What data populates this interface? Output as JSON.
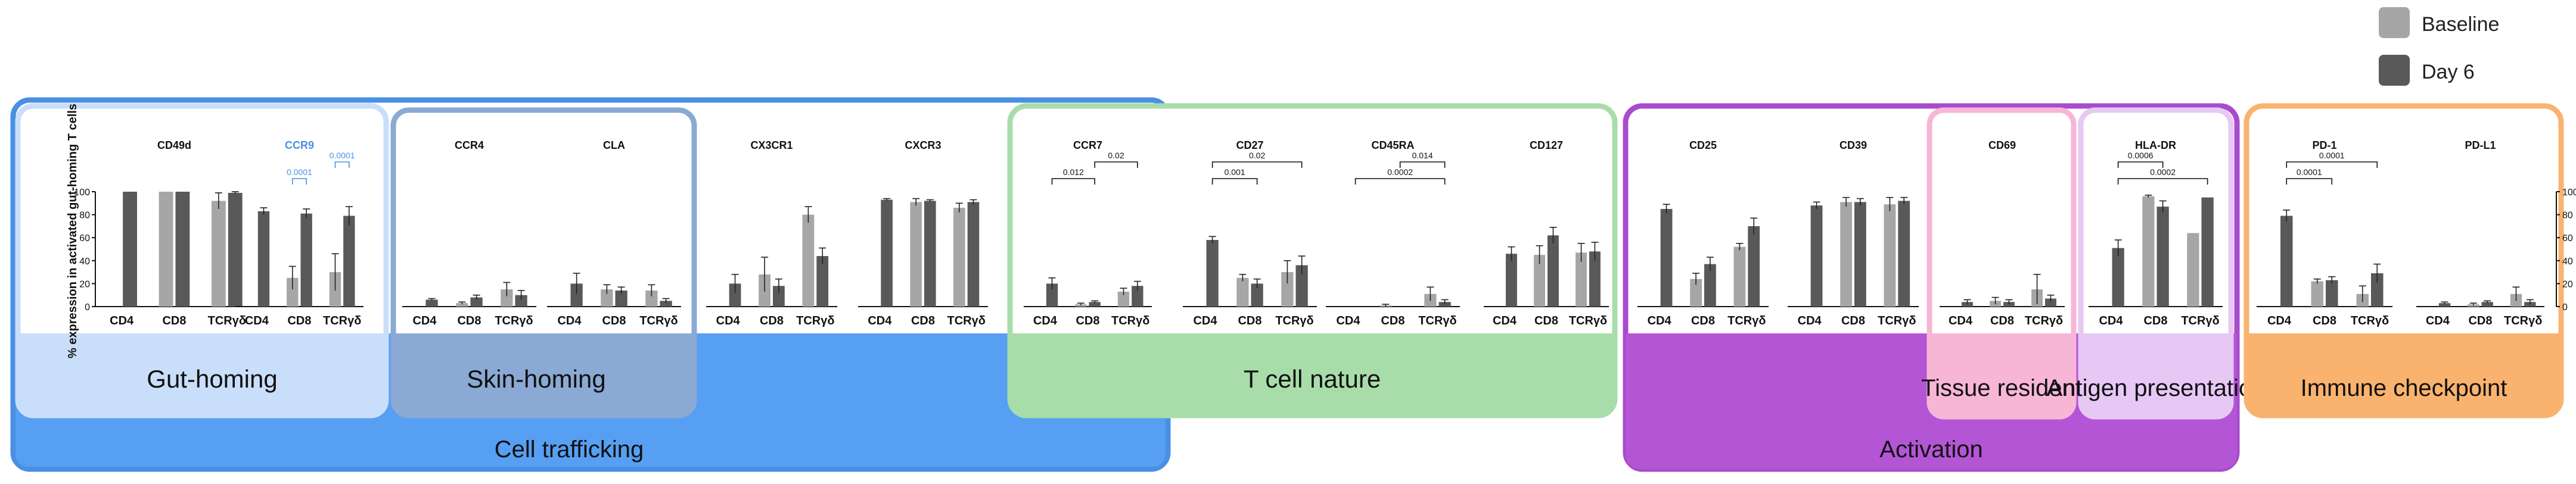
{
  "legend": {
    "items": [
      {
        "label": "Baseline",
        "color": "#a6a6a6"
      },
      {
        "label": "Day 6",
        "color": "#595959"
      }
    ]
  },
  "y_axis_label": "% expression in activated gut-homing T cells",
  "right_axis_ticks": [
    "0",
    "20",
    "40",
    "60",
    "80",
    "100"
  ],
  "groups": {
    "cell_trafficking": "Cell trafficking",
    "gut_homing": "Gut-homing",
    "skin_homing": "Skin-homing",
    "t_cell_nature": "T cell nature",
    "activation": "Activation",
    "tissue_resident": "Tissue resident",
    "antigen_presentation": "Antigen presentation",
    "immune_checkpoint": "Immune checkpoint"
  },
  "colors": {
    "baseline": "#a6a6a6",
    "day6": "#595959",
    "trafficking_outer": "#4a90e2",
    "trafficking_fill": "#569ff2",
    "gut_fill": "#c9defa",
    "skin_fill": "#8aa9d5",
    "tcell": "#a8ddaa",
    "activation": "#b455d6",
    "activation_border": "#a84bcc",
    "tissue": "#f8b6d6",
    "antigen": "#e7c8f5",
    "checkpoint": "#f9b36f",
    "ccr9_title": "#4a90e2"
  },
  "chart_data": {
    "type": "bar",
    "categories": [
      "CD4",
      "CD8",
      "TCRγδ"
    ],
    "series_names": [
      "Baseline",
      "Day 6"
    ],
    "ylim": [
      0,
      100
    ],
    "panels": [
      {
        "title": "CD49d",
        "values": {
          "baseline": [
            null,
            100,
            92
          ],
          "day6": [
            100,
            100,
            99
          ]
        },
        "errors": {
          "baseline": [
            0,
            0,
            7
          ],
          "day6": [
            0,
            0,
            1
          ]
        }
      },
      {
        "title": "CCR9",
        "values": {
          "baseline": [
            null,
            25,
            30
          ],
          "day6": [
            83,
            81,
            79
          ]
        },
        "errors": {
          "baseline": [
            0,
            10,
            16
          ],
          "day6": [
            3,
            4,
            8
          ]
        },
        "annotations": [
          {
            "label": "0.0001",
            "from": "CD8 Baseline",
            "to": "CD8 Day 6"
          },
          {
            "label": "0.0001",
            "from": "TCRγδ Baseline",
            "to": "TCRγδ Day 6"
          }
        ]
      },
      {
        "title": "CCR4",
        "values": {
          "baseline": [
            null,
            3,
            15
          ],
          "day6": [
            6,
            8,
            10
          ]
        },
        "errors": {
          "baseline": [
            0,
            1,
            6
          ],
          "day6": [
            1,
            2,
            4
          ]
        }
      },
      {
        "title": "CLA",
        "values": {
          "baseline": [
            null,
            15,
            14
          ],
          "day6": [
            20,
            14,
            5
          ]
        },
        "errors": {
          "baseline": [
            0,
            4,
            5
          ],
          "day6": [
            9,
            3,
            2
          ]
        }
      },
      {
        "title": "CX3CR1",
        "values": {
          "baseline": [
            null,
            28,
            80
          ],
          "day6": [
            20,
            18,
            44
          ]
        },
        "errors": {
          "baseline": [
            0,
            15,
            7
          ],
          "day6": [
            8,
            6,
            7
          ]
        }
      },
      {
        "title": "CXCR3",
        "values": {
          "baseline": [
            null,
            91,
            86
          ],
          "day6": [
            93,
            92,
            91
          ]
        },
        "errors": {
          "baseline": [
            0,
            3,
            4
          ],
          "day6": [
            1,
            1,
            2
          ]
        }
      },
      {
        "title": "CCR7",
        "values": {
          "baseline": [
            null,
            2,
            13
          ],
          "day6": [
            20,
            4,
            18
          ]
        },
        "errors": {
          "baseline": [
            0,
            1,
            3
          ],
          "day6": [
            5,
            1,
            4
          ]
        },
        "annotations": [
          {
            "label": "0.012",
            "from": "CD4 Day 6",
            "to": "CD8 Day 6"
          },
          {
            "label": "0.02",
            "from": "CD8 Day 6",
            "to": "TCRγδ Day 6"
          }
        ]
      },
      {
        "title": "CD27",
        "values": {
          "baseline": [
            null,
            25,
            30
          ],
          "day6": [
            58,
            20,
            36
          ]
        },
        "errors": {
          "baseline": [
            0,
            3,
            10
          ],
          "day6": [
            3,
            4,
            8
          ]
        },
        "annotations": [
          {
            "label": "0.001",
            "from": "CD4 Day 6",
            "to": "CD8 Day 6"
          },
          {
            "label": "0.02",
            "from": "CD4 Day 6",
            "to": "TCRγδ Day 6"
          }
        ]
      },
      {
        "title": "CD45RA",
        "values": {
          "baseline": [
            null,
            1,
            11
          ],
          "day6": [
            0,
            0,
            4
          ]
        },
        "errors": {
          "baseline": [
            0,
            1,
            6
          ],
          "day6": [
            0,
            0,
            2
          ]
        },
        "annotations": [
          {
            "label": "0.0002",
            "from": "CD4 Day 6",
            "to": "TCRγδ Day 6"
          },
          {
            "label": "0.014",
            "from": "CD8 Day 6",
            "to": "TCRγδ Day 6"
          }
        ]
      },
      {
        "title": "CD127",
        "values": {
          "baseline": [
            null,
            45,
            47
          ],
          "day6": [
            46,
            62,
            48
          ]
        },
        "errors": {
          "baseline": [
            0,
            8,
            8
          ],
          "day6": [
            6,
            7,
            8
          ]
        }
      },
      {
        "title": "CD25",
        "values": {
          "baseline": [
            null,
            24,
            52
          ],
          "day6": [
            85,
            37,
            70
          ]
        },
        "errors": {
          "baseline": [
            0,
            5,
            3
          ],
          "day6": [
            4,
            6,
            7
          ]
        }
      },
      {
        "title": "CD39",
        "values": {
          "baseline": [
            null,
            91,
            89
          ],
          "day6": [
            88,
            91,
            92
          ]
        },
        "errors": {
          "baseline": [
            0,
            4,
            6
          ],
          "day6": [
            3,
            3,
            3
          ]
        }
      },
      {
        "title": "CD69",
        "values": {
          "baseline": [
            null,
            5,
            15
          ],
          "day6": [
            4,
            4,
            7
          ]
        },
        "errors": {
          "baseline": [
            0,
            3,
            13
          ],
          "day6": [
            2,
            2,
            3
          ]
        }
      },
      {
        "title": "HLA-DR",
        "values": {
          "baseline": [
            null,
            96,
            64
          ],
          "day6": [
            51,
            87,
            95
          ]
        },
        "errors": {
          "baseline": [
            0,
            1,
            0
          ],
          "day6": [
            7,
            5,
            0
          ]
        },
        "annotations": [
          {
            "label": "0.0002",
            "from": "CD4 Day 6",
            "to": "TCRγδ Day 6"
          },
          {
            "label": "0.0006",
            "from": "CD4 Day 6",
            "to": "CD8 Day 6"
          }
        ]
      },
      {
        "title": "PD-1",
        "values": {
          "baseline": [
            null,
            22,
            11
          ],
          "day6": [
            79,
            23,
            29
          ]
        },
        "errors": {
          "baseline": [
            0,
            2,
            7
          ],
          "day6": [
            5,
            3,
            8
          ]
        },
        "annotations": [
          {
            "label": "0.0001",
            "from": "CD4 Day 6",
            "to": "CD8 Day 6"
          },
          {
            "label": "0.0001",
            "from": "CD4 Day 6",
            "to": "TCRγδ Day 6"
          }
        ]
      },
      {
        "title": "PD-L1",
        "values": {
          "baseline": [
            null,
            2,
            11
          ],
          "day6": [
            3,
            4,
            4
          ]
        },
        "errors": {
          "baseline": [
            0,
            1,
            6
          ],
          "day6": [
            1,
            1,
            2
          ]
        }
      }
    ]
  }
}
